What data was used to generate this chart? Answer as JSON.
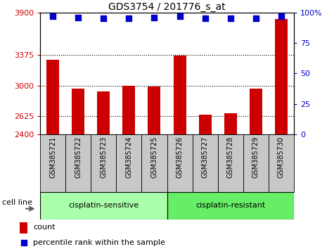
{
  "title": "GDS3754 / 201776_s_at",
  "samples": [
    "GSM385721",
    "GSM385722",
    "GSM385723",
    "GSM385724",
    "GSM385725",
    "GSM385726",
    "GSM385727",
    "GSM385728",
    "GSM385729",
    "GSM385730"
  ],
  "counts": [
    3320,
    2960,
    2930,
    3000,
    2990,
    3370,
    2640,
    2660,
    2960,
    3820
  ],
  "percentile_ranks": [
    97,
    96,
    95,
    95,
    96,
    97,
    95,
    95,
    95,
    97
  ],
  "bar_color": "#cc0000",
  "dot_color": "#0000cc",
  "ylim_left": [
    2400,
    3900
  ],
  "yticks_left": [
    2400,
    2625,
    3000,
    3375,
    3900
  ],
  "ylim_right": [
    0,
    100
  ],
  "yticks_right": [
    0,
    25,
    50,
    75,
    100
  ],
  "ytick_labels_right": [
    "0",
    "25",
    "50",
    "75",
    "100%"
  ],
  "grid_values": [
    2625,
    3000,
    3375
  ],
  "group1_label": "cisplatin-sensitive",
  "group2_label": "cisplatin-resistant",
  "group1_indices": [
    0,
    1,
    2,
    3,
    4
  ],
  "group2_indices": [
    5,
    6,
    7,
    8,
    9
  ],
  "group1_color": "#aaffaa",
  "group2_color": "#66ee66",
  "cell_line_label": "cell line",
  "legend_count_label": "count",
  "legend_pct_label": "percentile rank within the sample",
  "bar_color_legend": "#cc0000",
  "dot_color_legend": "#0000cc",
  "xlabel_color": "#cc0000",
  "right_axis_color": "#0000cc",
  "title_fontsize": 10,
  "tick_fontsize": 8,
  "label_fontsize": 7,
  "bar_width": 0.5,
  "dot_size": 35,
  "xlim": [
    -0.5,
    9.5
  ],
  "gray_color": "#c8c8c8"
}
